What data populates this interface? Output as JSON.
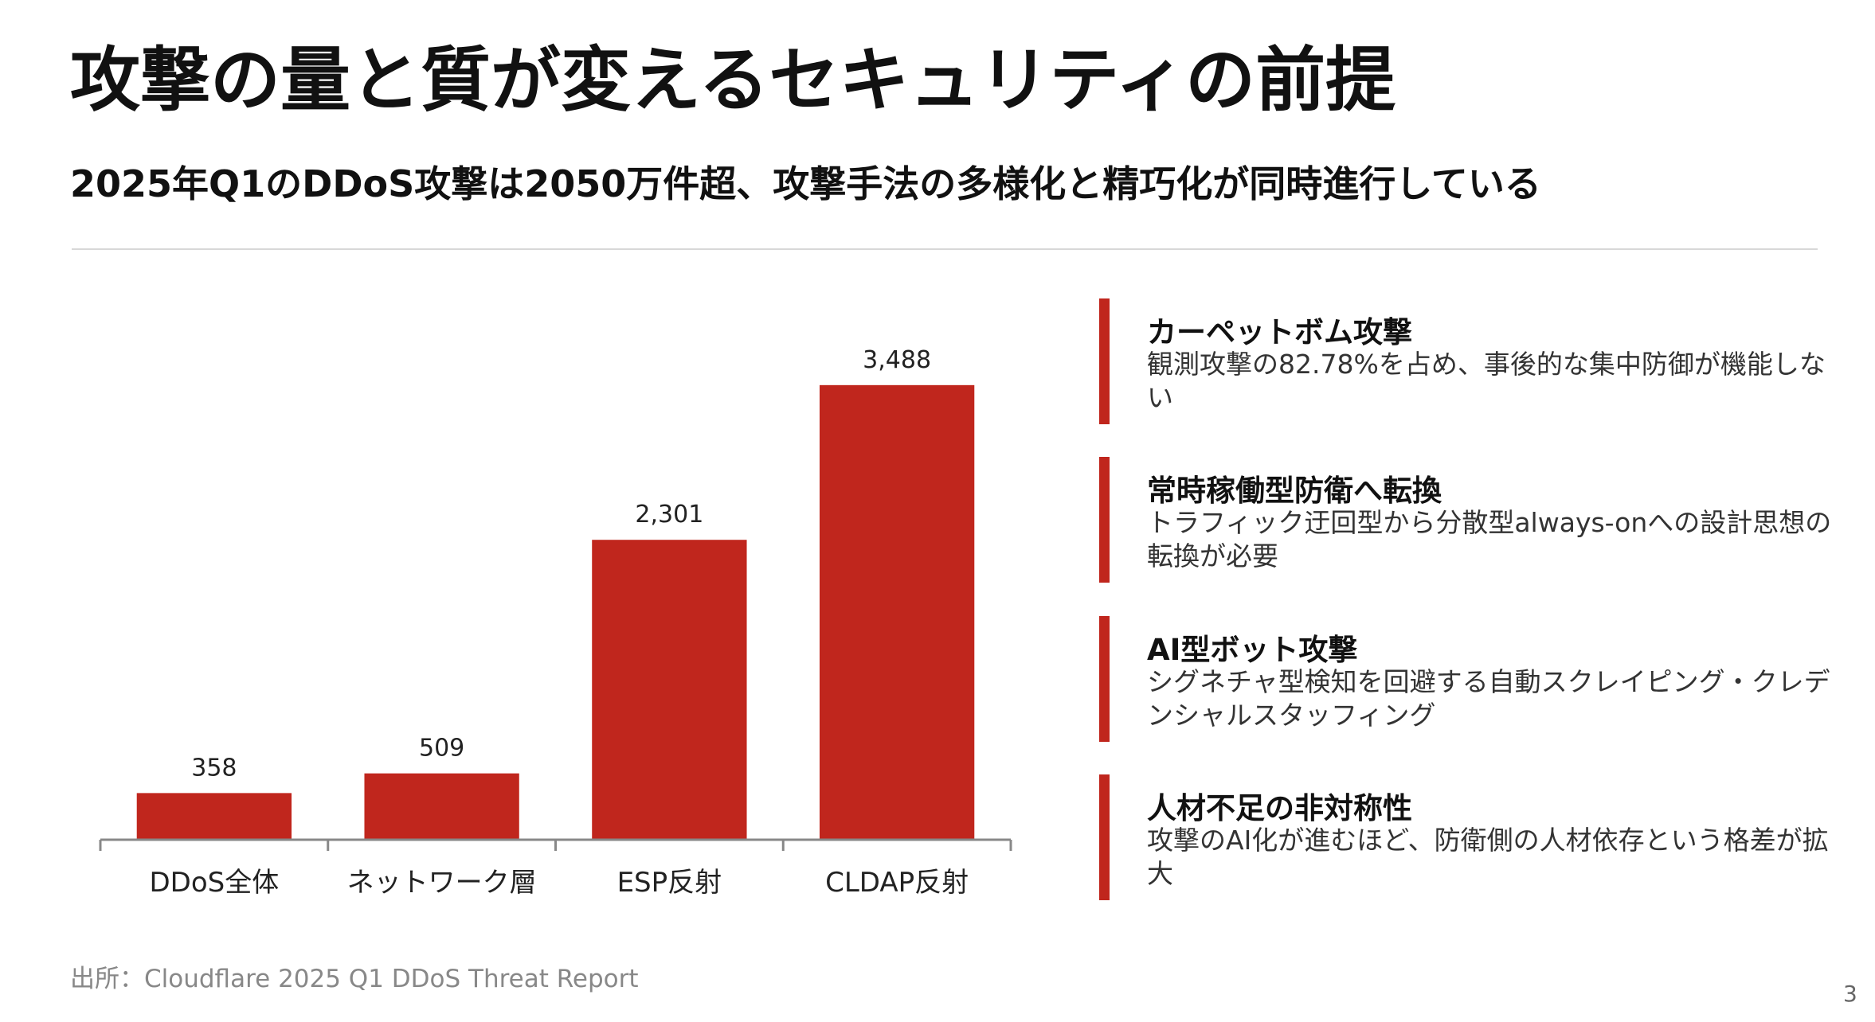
{
  "title": "攻撃の量と質が変えるセキュリティの前提",
  "subtitle": "2025年Q1のDDoS攻撃は2050万件超、攻撃手法の多様化と精巧化が同時進行している",
  "chart_data": {
    "type": "bar",
    "categories": [
      "DDoS全体",
      "ネットワーク層",
      "ESP反射",
      "CLDAP反射"
    ],
    "values": [
      358,
      509,
      2301,
      3488
    ],
    "value_labels": [
      "358",
      "509",
      "2,301",
      "3,488"
    ],
    "color": "#c0261d",
    "ylim": [
      0,
      4000
    ]
  },
  "points": [
    {
      "heading": "カーペットボム攻撃",
      "body": "観測攻撃の82.78%を占め、事後的な集中防御が機能しない"
    },
    {
      "heading": "常時稼働型防衛へ転換",
      "body": "トラフィック迂回型から分散型always-onへの設計思想の転換が必要"
    },
    {
      "heading": "AI型ボット攻撃",
      "body": "シグネチャ型検知を回避する自動スクレイピング・クレデンシャルスタッフィング"
    },
    {
      "heading": "人材不足の非対称性",
      "body": "攻撃のAI化が進むほど、防衛側の人材依存という格差が拡大"
    }
  ],
  "source": "出所：Cloudflare 2025 Q1 DDoS Threat Report",
  "page_number": "3"
}
